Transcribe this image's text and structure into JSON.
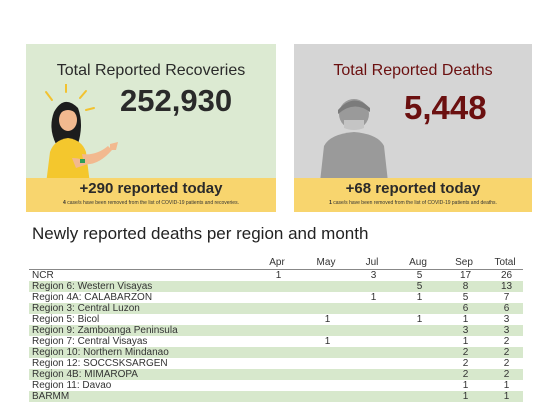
{
  "recoveries": {
    "title": "Total Reported Recoveries",
    "value": "252,930",
    "today": "+290 reported today",
    "note_bold": "4",
    "note": " case/s have been removed from the list of COVID-19 patients and recoveries."
  },
  "deaths": {
    "title": "Total Reported Deaths",
    "value": "5,448",
    "today": "+68 reported today",
    "note_bold": "1",
    "note": " case/s have been removed from the list of COVID-19 patients and deaths."
  },
  "table": {
    "heading": "Newly reported deaths per region and month",
    "columns": [
      "",
      "Apr",
      "May",
      "Jul",
      "Aug",
      "Sep",
      "Total"
    ],
    "rows": [
      [
        "NCR",
        "1",
        "",
        "3",
        "5",
        "17",
        "26"
      ],
      [
        "Region 6: Western Visayas",
        "",
        "",
        "",
        "5",
        "8",
        "13"
      ],
      [
        "Region 4A: CALABARZON",
        "",
        "",
        "1",
        "1",
        "5",
        "7"
      ],
      [
        "Region 3: Central Luzon",
        "",
        "",
        "",
        "",
        "6",
        "6"
      ],
      [
        "Region 5: Bicol",
        "",
        "1",
        "",
        "1",
        "1",
        "3"
      ],
      [
        "Region 9: Zamboanga Peninsula",
        "",
        "",
        "",
        "",
        "3",
        "3"
      ],
      [
        "Region 7: Central Visayas",
        "",
        "1",
        "",
        "",
        "1",
        "2"
      ],
      [
        "Region 10: Northern Mindanao",
        "",
        "",
        "",
        "",
        "2",
        "2"
      ],
      [
        "Region 12: SOCCSKSARGEN",
        "",
        "",
        "",
        "",
        "2",
        "2"
      ],
      [
        "Region 4B: MIMAROPA",
        "",
        "",
        "",
        "",
        "2",
        "2"
      ],
      [
        "Region 11: Davao",
        "",
        "",
        "",
        "",
        "1",
        "1"
      ],
      [
        "BARMM",
        "",
        "",
        "",
        "",
        "1",
        "1"
      ]
    ]
  },
  "colors": {
    "recoveries_bg": "#dcead2",
    "deaths_bg": "#d5d5d5",
    "band": "#f8d56e",
    "deaths_text": "#6b1010",
    "row_stripe": "#d7e8cc"
  },
  "icons": {
    "recoveries": "recovered-woman-illustration",
    "deaths": "person-silhouette-illustration"
  }
}
